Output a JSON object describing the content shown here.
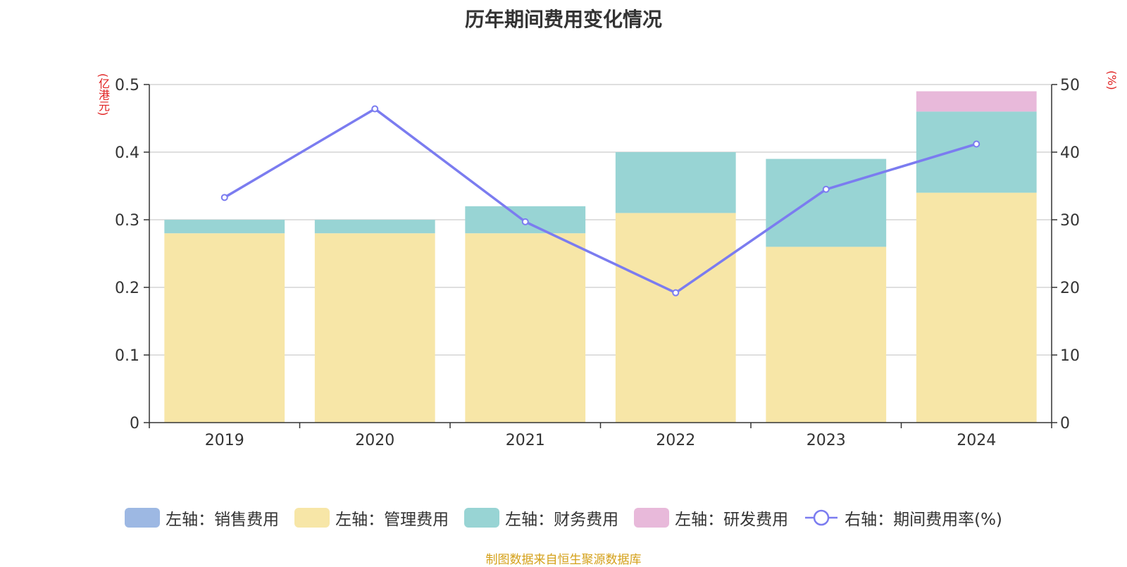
{
  "title": "历年期间费用变化情况",
  "left_unit": "(亿港元)",
  "right_unit": "(%)",
  "source_note": "制图数据来自恒生聚源数据库",
  "colors": {
    "sales": "#9db8e3",
    "admin": "#f7e6a7",
    "finance": "#98d4d4",
    "rnd": "#e8b9da",
    "line": "#7b7cf0",
    "grid": "#cccccc",
    "axis": "#333333"
  },
  "legend": [
    {
      "label": "左轴：销售费用",
      "color": "#9db8e3",
      "icon": "square"
    },
    {
      "label": "左轴：管理费用",
      "color": "#f7e6a7",
      "icon": "square"
    },
    {
      "label": "左轴：财务费用",
      "color": "#98d4d4",
      "icon": "square"
    },
    {
      "label": "左轴：研发费用",
      "color": "#e8b9da",
      "icon": "square"
    },
    {
      "label": "右轴：期间费用率(%)",
      "color": "#7b7cf0",
      "icon": "line-circle"
    }
  ],
  "chart_data": {
    "type": "bar",
    "stacked": true,
    "categories": [
      "2019",
      "2020",
      "2021",
      "2022",
      "2023",
      "2024"
    ],
    "series": [
      {
        "name": "左轴：销售费用",
        "axis": "left",
        "values": [
          0,
          0,
          0,
          0,
          0,
          0
        ]
      },
      {
        "name": "左轴：管理费用",
        "axis": "left",
        "values": [
          0.28,
          0.28,
          0.28,
          0.31,
          0.26,
          0.34
        ]
      },
      {
        "name": "左轴：财务费用",
        "axis": "left",
        "values": [
          0.02,
          0.02,
          0.04,
          0.09,
          0.13,
          0.12
        ]
      },
      {
        "name": "左轴：研发费用",
        "axis": "left",
        "values": [
          0,
          0,
          0,
          0,
          0,
          0.03
        ]
      },
      {
        "name": "右轴：期间费用率(%)",
        "type": "line",
        "axis": "right",
        "values": [
          33.3,
          46.4,
          29.7,
          19.2,
          34.5,
          41.2
        ]
      }
    ],
    "left_axis": {
      "ylim": [
        0,
        0.5
      ],
      "ticks": [
        "0",
        "0.1",
        "0.2",
        "0.3",
        "0.4",
        "0.5"
      ]
    },
    "right_axis": {
      "ylim": [
        0,
        50
      ],
      "ticks": [
        "0",
        "10",
        "20",
        "30",
        "40",
        "50"
      ]
    },
    "grid": true,
    "legend_position": "bottom"
  }
}
